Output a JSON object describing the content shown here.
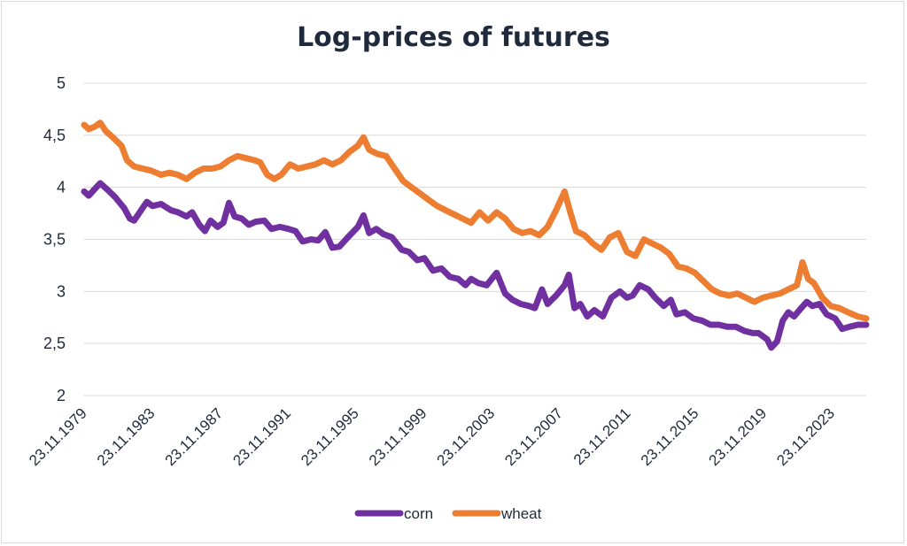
{
  "chart_data": {
    "type": "line",
    "title": "Log-prices of futures",
    "xlabel": "",
    "ylabel": "",
    "ylim": [
      2,
      5
    ],
    "yticks": [
      "2",
      "2,5",
      "3",
      "3,5",
      "4",
      "4,5",
      "5"
    ],
    "xlim": [
      "23.11.1979",
      "12.2025"
    ],
    "xticks": [
      "23.11.1979",
      "23.11.1983",
      "23.11.1987",
      "23.11.1991",
      "23.11.1995",
      "23.11.1999",
      "23.11.2003",
      "23.11.2007",
      "23.11.2011",
      "23.11.2015",
      "23.11.2019",
      "23.11.2023"
    ],
    "grid": "horizontal",
    "legend": "bottom",
    "colors": {
      "corn": "#7030a0",
      "wheat": "#ed7d31",
      "grid": "#d9d9d9",
      "text": "#1f2a3c"
    },
    "series": [
      {
        "name": "corn",
        "points": [
          [
            "1979-11-23",
            3.96
          ],
          [
            "1980-03-01",
            3.92
          ],
          [
            "1980-07-01",
            3.98
          ],
          [
            "1980-11-01",
            4.04
          ],
          [
            "1981-04-01",
            3.98
          ],
          [
            "1981-10-01",
            3.9
          ],
          [
            "1982-04-01",
            3.8
          ],
          [
            "1982-08-01",
            3.7
          ],
          [
            "1982-11-01",
            3.68
          ],
          [
            "1983-03-01",
            3.76
          ],
          [
            "1983-08-01",
            3.86
          ],
          [
            "1983-12-01",
            3.82
          ],
          [
            "1984-06-01",
            3.84
          ],
          [
            "1985-01-01",
            3.78
          ],
          [
            "1985-06-01",
            3.76
          ],
          [
            "1985-12-01",
            3.72
          ],
          [
            "1986-04-01",
            3.76
          ],
          [
            "1986-09-01",
            3.64
          ],
          [
            "1987-01-01",
            3.58
          ],
          [
            "1987-05-01",
            3.68
          ],
          [
            "1987-10-01",
            3.62
          ],
          [
            "1988-02-01",
            3.66
          ],
          [
            "1988-06-01",
            3.85
          ],
          [
            "1988-10-01",
            3.72
          ],
          [
            "1989-03-01",
            3.7
          ],
          [
            "1989-08-01",
            3.64
          ],
          [
            "1990-01-01",
            3.67
          ],
          [
            "1990-07-01",
            3.68
          ],
          [
            "1990-12-01",
            3.6
          ],
          [
            "1991-06-01",
            3.62
          ],
          [
            "1991-12-01",
            3.6
          ],
          [
            "1992-05-01",
            3.58
          ],
          [
            "1992-10-01",
            3.48
          ],
          [
            "1993-04-01",
            3.5
          ],
          [
            "1993-09-01",
            3.49
          ],
          [
            "1994-02-01",
            3.57
          ],
          [
            "1994-07-01",
            3.42
          ],
          [
            "1994-12-01",
            3.43
          ],
          [
            "1995-06-01",
            3.52
          ],
          [
            "1996-01-01",
            3.62
          ],
          [
            "1996-05-01",
            3.73
          ],
          [
            "1996-09-01",
            3.56
          ],
          [
            "1997-02-01",
            3.6
          ],
          [
            "1997-07-01",
            3.55
          ],
          [
            "1998-01-01",
            3.52
          ],
          [
            "1998-08-01",
            3.4
          ],
          [
            "1999-01-01",
            3.38
          ],
          [
            "1999-07-01",
            3.3
          ],
          [
            "1999-12-01",
            3.32
          ],
          [
            "2000-06-01",
            3.2
          ],
          [
            "2000-12-01",
            3.22
          ],
          [
            "2001-06-01",
            3.14
          ],
          [
            "2001-12-01",
            3.12
          ],
          [
            "2002-05-01",
            3.06
          ],
          [
            "2002-09-01",
            3.12
          ],
          [
            "2003-02-01",
            3.08
          ],
          [
            "2003-08-01",
            3.06
          ],
          [
            "2004-03-01",
            3.18
          ],
          [
            "2004-09-01",
            2.98
          ],
          [
            "2005-02-01",
            2.92
          ],
          [
            "2005-08-01",
            2.88
          ],
          [
            "2006-02-01",
            2.86
          ],
          [
            "2006-06-01",
            2.84
          ],
          [
            "2006-11-01",
            3.02
          ],
          [
            "2007-03-01",
            2.88
          ],
          [
            "2007-09-01",
            2.96
          ],
          [
            "2008-03-01",
            3.06
          ],
          [
            "2008-06-01",
            3.16
          ],
          [
            "2008-10-01",
            2.84
          ],
          [
            "2009-02-01",
            2.88
          ],
          [
            "2009-07-01",
            2.76
          ],
          [
            "2009-12-01",
            2.82
          ],
          [
            "2010-06-01",
            2.76
          ],
          [
            "2010-12-01",
            2.94
          ],
          [
            "2011-06-01",
            3.0
          ],
          [
            "2011-11-01",
            2.94
          ],
          [
            "2012-03-01",
            2.96
          ],
          [
            "2012-08-01",
            3.06
          ],
          [
            "2013-02-01",
            3.02
          ],
          [
            "2013-07-01",
            2.94
          ],
          [
            "2014-01-01",
            2.86
          ],
          [
            "2014-06-01",
            2.92
          ],
          [
            "2014-10-01",
            2.78
          ],
          [
            "2015-04-01",
            2.8
          ],
          [
            "2015-10-01",
            2.74
          ],
          [
            "2016-04-01",
            2.72
          ],
          [
            "2016-10-01",
            2.68
          ],
          [
            "2017-04-01",
            2.68
          ],
          [
            "2017-10-01",
            2.66
          ],
          [
            "2018-04-01",
            2.66
          ],
          [
            "2018-10-01",
            2.62
          ],
          [
            "2019-04-01",
            2.6
          ],
          [
            "2019-08-01",
            2.6
          ],
          [
            "2020-02-01",
            2.54
          ],
          [
            "2020-05-01",
            2.46
          ],
          [
            "2020-09-01",
            2.52
          ],
          [
            "2021-01-01",
            2.72
          ],
          [
            "2021-05-01",
            2.8
          ],
          [
            "2021-09-01",
            2.76
          ],
          [
            "2022-02-01",
            2.84
          ],
          [
            "2022-06-01",
            2.9
          ],
          [
            "2022-10-01",
            2.86
          ],
          [
            "2023-03-01",
            2.88
          ],
          [
            "2023-08-01",
            2.78
          ],
          [
            "2024-02-01",
            2.74
          ],
          [
            "2024-07-01",
            2.64
          ],
          [
            "2024-12-01",
            2.66
          ],
          [
            "2025-06-01",
            2.68
          ],
          [
            "2025-12-01",
            2.68
          ]
        ]
      },
      {
        "name": "wheat",
        "points": [
          [
            "1979-11-23",
            4.6
          ],
          [
            "1980-03-01",
            4.56
          ],
          [
            "1980-07-01",
            4.58
          ],
          [
            "1980-11-01",
            4.62
          ],
          [
            "1981-03-01",
            4.54
          ],
          [
            "1981-08-01",
            4.48
          ],
          [
            "1982-02-01",
            4.4
          ],
          [
            "1982-06-01",
            4.26
          ],
          [
            "1982-11-01",
            4.2
          ],
          [
            "1983-05-01",
            4.18
          ],
          [
            "1983-11-01",
            4.16
          ],
          [
            "1984-06-01",
            4.12
          ],
          [
            "1984-12-01",
            4.14
          ],
          [
            "1985-06-01",
            4.12
          ],
          [
            "1985-12-01",
            4.08
          ],
          [
            "1986-06-01",
            4.14
          ],
          [
            "1986-12-01",
            4.18
          ],
          [
            "1987-06-01",
            4.18
          ],
          [
            "1987-12-01",
            4.2
          ],
          [
            "1988-06-01",
            4.26
          ],
          [
            "1988-12-01",
            4.3
          ],
          [
            "1989-06-01",
            4.28
          ],
          [
            "1989-12-01",
            4.26
          ],
          [
            "1990-04-01",
            4.24
          ],
          [
            "1990-09-01",
            4.12
          ],
          [
            "1991-02-01",
            4.08
          ],
          [
            "1991-07-01",
            4.12
          ],
          [
            "1992-01-01",
            4.22
          ],
          [
            "1992-07-01",
            4.18
          ],
          [
            "1993-01-01",
            4.2
          ],
          [
            "1993-07-01",
            4.22
          ],
          [
            "1994-01-01",
            4.26
          ],
          [
            "1994-07-01",
            4.22
          ],
          [
            "1995-01-01",
            4.26
          ],
          [
            "1995-07-01",
            4.34
          ],
          [
            "1996-01-01",
            4.4
          ],
          [
            "1996-05-01",
            4.48
          ],
          [
            "1996-09-01",
            4.36
          ],
          [
            "1997-03-01",
            4.32
          ],
          [
            "1997-09-01",
            4.3
          ],
          [
            "1998-03-01",
            4.18
          ],
          [
            "1998-09-01",
            4.06
          ],
          [
            "1999-03-01",
            4.0
          ],
          [
            "1999-09-01",
            3.94
          ],
          [
            "2000-03-01",
            3.88
          ],
          [
            "2000-09-01",
            3.82
          ],
          [
            "2001-03-01",
            3.78
          ],
          [
            "2001-09-01",
            3.74
          ],
          [
            "2002-03-01",
            3.7
          ],
          [
            "2002-09-01",
            3.66
          ],
          [
            "2003-03-01",
            3.76
          ],
          [
            "2003-09-01",
            3.68
          ],
          [
            "2004-03-01",
            3.76
          ],
          [
            "2004-09-01",
            3.7
          ],
          [
            "2005-03-01",
            3.6
          ],
          [
            "2005-09-01",
            3.56
          ],
          [
            "2006-03-01",
            3.58
          ],
          [
            "2006-09-01",
            3.54
          ],
          [
            "2007-03-01",
            3.62
          ],
          [
            "2007-09-01",
            3.78
          ],
          [
            "2008-03-01",
            3.96
          ],
          [
            "2008-07-01",
            3.76
          ],
          [
            "2008-11-01",
            3.58
          ],
          [
            "2009-05-01",
            3.54
          ],
          [
            "2009-11-01",
            3.46
          ],
          [
            "2010-05-01",
            3.4
          ],
          [
            "2010-11-01",
            3.52
          ],
          [
            "2011-05-01",
            3.56
          ],
          [
            "2011-11-01",
            3.38
          ],
          [
            "2012-05-01",
            3.34
          ],
          [
            "2012-11-01",
            3.5
          ],
          [
            "2013-05-01",
            3.46
          ],
          [
            "2013-11-01",
            3.42
          ],
          [
            "2014-05-01",
            3.36
          ],
          [
            "2014-11-01",
            3.24
          ],
          [
            "2015-05-01",
            3.22
          ],
          [
            "2015-11-01",
            3.18
          ],
          [
            "2016-05-01",
            3.1
          ],
          [
            "2016-11-01",
            3.02
          ],
          [
            "2017-05-01",
            2.98
          ],
          [
            "2017-11-01",
            2.96
          ],
          [
            "2018-05-01",
            2.98
          ],
          [
            "2018-11-01",
            2.94
          ],
          [
            "2019-05-01",
            2.9
          ],
          [
            "2019-11-01",
            2.94
          ],
          [
            "2020-05-01",
            2.96
          ],
          [
            "2020-11-01",
            2.98
          ],
          [
            "2021-05-01",
            3.02
          ],
          [
            "2021-11-01",
            3.06
          ],
          [
            "2022-03-01",
            3.28
          ],
          [
            "2022-07-01",
            3.12
          ],
          [
            "2022-11-01",
            3.08
          ],
          [
            "2023-05-01",
            2.94
          ],
          [
            "2023-11-01",
            2.86
          ],
          [
            "2024-05-01",
            2.84
          ],
          [
            "2024-11-01",
            2.8
          ],
          [
            "2025-06-01",
            2.76
          ],
          [
            "2025-12-01",
            2.74
          ]
        ]
      }
    ]
  }
}
